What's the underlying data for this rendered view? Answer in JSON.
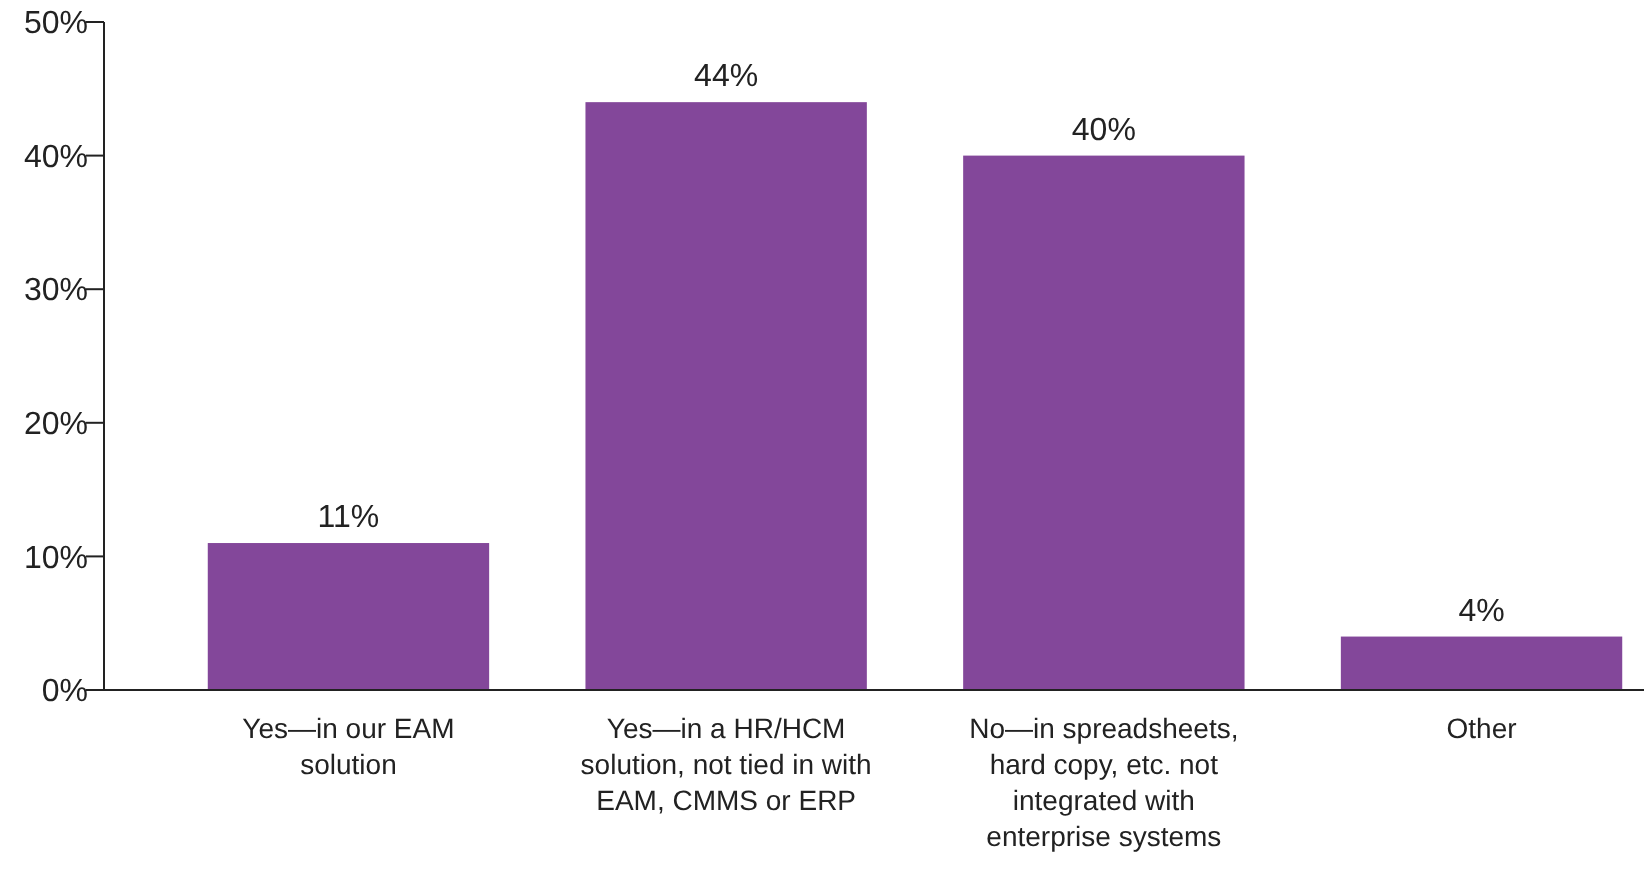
{
  "chart_data": {
    "type": "bar",
    "categories": [
      "Yes—in our EAM\nsolution",
      "Yes—in a HR/HCM\nsolution, not tied in with\nEAM, CMMS or ERP",
      "No—in spreadsheets,\nhard copy, etc. not\nintegrated with\nenterprise systems",
      "Other"
    ],
    "values": [
      11,
      44,
      40,
      4
    ],
    "color": "#83479a",
    "ylim": [
      0,
      50
    ],
    "yticks": [
      {
        "value": 0,
        "label": "0%"
      },
      {
        "value": 10,
        "label": "10%"
      },
      {
        "value": 20,
        "label": "20%"
      },
      {
        "value": 30,
        "label": "30%"
      },
      {
        "value": 40,
        "label": "40%"
      },
      {
        "value": 50,
        "label": "50%"
      }
    ],
    "value_labels": [
      "11%",
      "44%",
      "40%",
      "4%"
    ],
    "grid": false
  }
}
